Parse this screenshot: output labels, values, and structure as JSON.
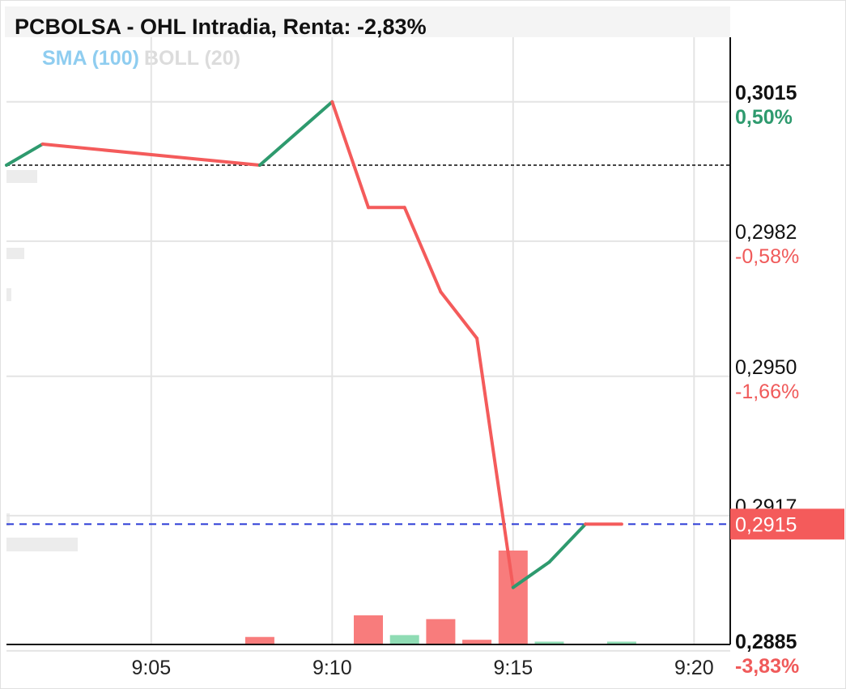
{
  "header": {
    "title": "PCBOLSA - OHL Intradia, Renta: -2,83%",
    "indicators": [
      {
        "label": "SMA (100)",
        "color": "#8fcdf0"
      },
      {
        "label": "BOLL (20)",
        "color": "#dcdcdc"
      }
    ]
  },
  "chart_data": {
    "type": "line",
    "title": "PCBOLSA - OHL Intradia, Renta: -2,83%",
    "reference_price": 0.3,
    "current_price": 0.2915,
    "current_price_label": "0,2915",
    "ylim": [
      0.28865,
      0.30303
    ],
    "xlim": [
      "9:01",
      "9:21"
    ],
    "x_ticks": [
      {
        "x": "9:05",
        "label": "9:05"
      },
      {
        "x": "9:10",
        "label": "9:10"
      },
      {
        "x": "9:15",
        "label": "9:15"
      },
      {
        "x": "9:20",
        "label": "9:20"
      }
    ],
    "y_ticks": [
      {
        "value": 0.3015,
        "label": "0,3015",
        "pct": "0,50%",
        "emph": true,
        "pct_color": "#2e9a6e"
      },
      {
        "value": 0.2982,
        "label": "0,2982",
        "pct": "-0,58%",
        "emph": false,
        "pct_color": "#f05a5a"
      },
      {
        "value": 0.295,
        "label": "0,2950",
        "pct": "-1,66%",
        "emph": false,
        "pct_color": "#f05a5a"
      },
      {
        "value": 0.2917,
        "label": "0,2917",
        "pct": "",
        "emph": false,
        "pct_color": "#f05a5a"
      },
      {
        "value": 0.2885,
        "label": "0,2885",
        "pct": "-3,83%",
        "emph": true,
        "pct_color": "#f05a5a"
      }
    ],
    "series": [
      {
        "x": [
          "9:01",
          "9:02",
          "9:08",
          "9:10",
          "9:11",
          "9:12",
          "9:13",
          "9:14",
          "9:15",
          "9:16",
          "9:17",
          "9:18"
        ],
        "y": [
          0.3,
          0.3005,
          0.3,
          0.3015,
          0.299,
          0.299,
          0.297,
          0.2959,
          0.29,
          0.2906,
          0.2915,
          0.2915
        ]
      }
    ],
    "volume": [
      {
        "x": "9:08",
        "value": 0.08,
        "dir": "down"
      },
      {
        "x": "9:11",
        "value": 0.31,
        "dir": "down"
      },
      {
        "x": "9:12",
        "value": 0.1,
        "dir": "up"
      },
      {
        "x": "9:13",
        "value": 0.27,
        "dir": "down"
      },
      {
        "x": "9:14",
        "value": 0.05,
        "dir": "down"
      },
      {
        "x": "9:15",
        "value": 1.0,
        "dir": "down"
      },
      {
        "x": "9:16",
        "value": 0.03,
        "dir": "up"
      },
      {
        "x": "9:18",
        "value": 0.03,
        "dir": "up"
      }
    ],
    "colors": {
      "up": "#2e9a6e",
      "down": "#f45b5b",
      "volume_up": "#8fdcb4",
      "volume_down": "#f87c7c",
      "reference_line": "#444444",
      "price_line": "#2b3bd6",
      "price_tag": "#f45b5b",
      "grid": "#e4e4e4"
    },
    "grid": true
  }
}
